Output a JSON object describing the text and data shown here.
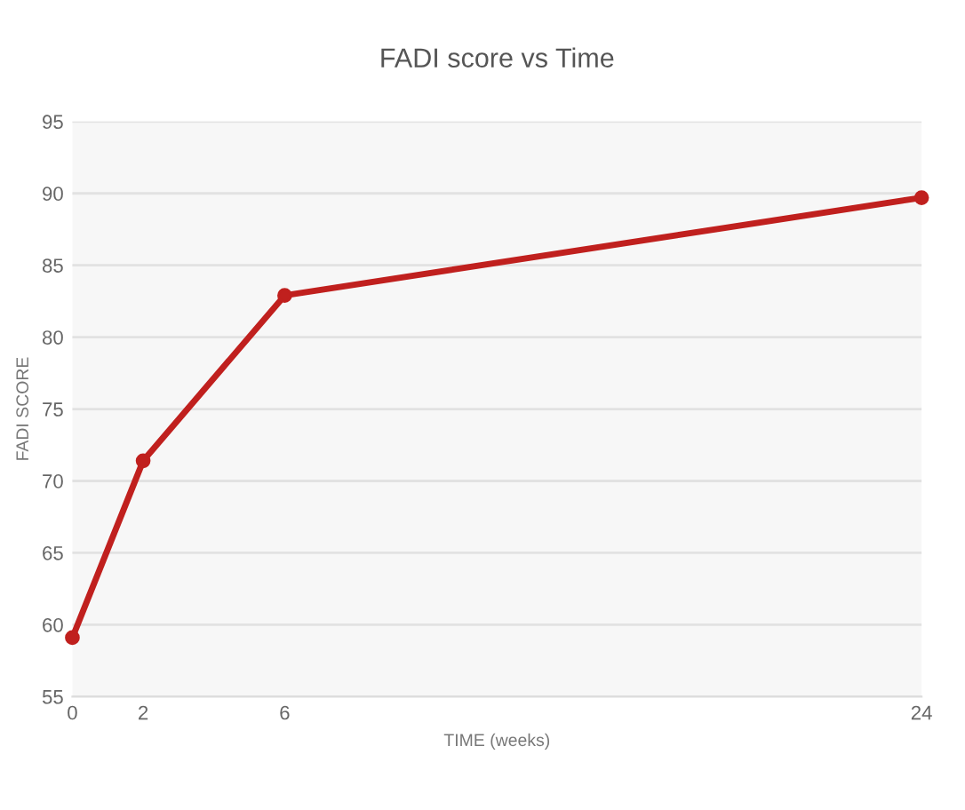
{
  "chart_data": {
    "type": "line",
    "title": "FADI score vs Time",
    "xlabel": "TIME (weeks)",
    "ylabel": "FADI SCORE",
    "x": [
      0,
      2,
      6,
      24
    ],
    "series": [
      {
        "color": "#c0201e",
        "values": [
          59.1,
          71.4,
          82.9,
          89.7
        ]
      }
    ],
    "xlim": [
      0,
      24
    ],
    "xticks": [
      0,
      2,
      6,
      24
    ],
    "ylim": [
      55,
      95
    ],
    "yticks": [
      55,
      60,
      65,
      70,
      75,
      80,
      85,
      90,
      95
    ],
    "grid": "y",
    "marker": "circle",
    "line_style": "solid",
    "legend": false
  }
}
